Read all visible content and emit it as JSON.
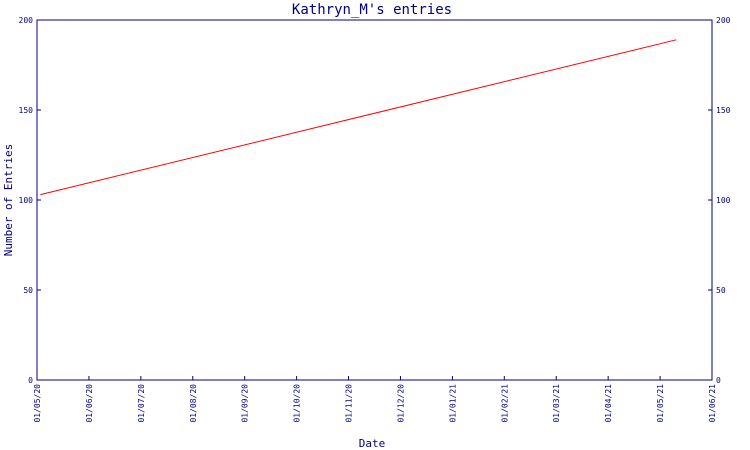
{
  "chart_data": {
    "type": "line",
    "title": "Kathryn_M's entries",
    "xlabel": "Date",
    "ylabel": "Number of Entries",
    "x_ticks": [
      "01/05/20",
      "01/06/20",
      "01/07/20",
      "01/08/20",
      "01/09/20",
      "01/10/20",
      "01/11/20",
      "01/12/20",
      "01/01/21",
      "01/02/21",
      "01/03/21",
      "01/04/21",
      "01/05/21",
      "01/06/21"
    ],
    "y_ticks": [
      0,
      50,
      100,
      150,
      200
    ],
    "ylim": [
      0,
      200
    ],
    "xlim": [
      "2020-05-01",
      "2021-06-01"
    ],
    "grid": false,
    "right_axis": true,
    "series": [
      {
        "color": "#ff0000",
        "x": [
          "2020-05-03",
          "2021-05-11"
        ],
        "values": [
          103,
          189
        ]
      }
    ]
  },
  "colors": {
    "axis": "#000080",
    "line": "#ff0000",
    "background": "#ffffff"
  }
}
